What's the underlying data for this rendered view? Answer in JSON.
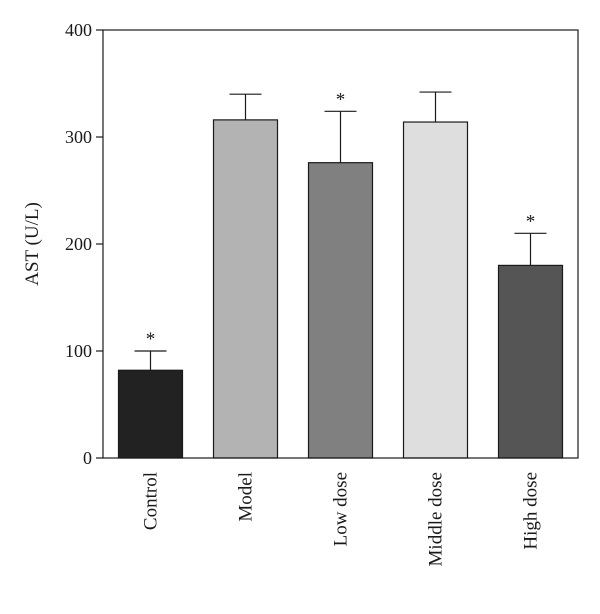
{
  "chart_data": {
    "type": "bar",
    "title": "",
    "xlabel": "",
    "ylabel": "AST (U/L)",
    "ylim": [
      0,
      400
    ],
    "yticks": [
      0,
      100,
      200,
      300,
      400
    ],
    "grid": false,
    "legend": "none",
    "categories": [
      "Control",
      "Model",
      "Low dose",
      "Middle dose",
      "High dose"
    ],
    "values": [
      82,
      316,
      276,
      314,
      180
    ],
    "errors": [
      18,
      24,
      48,
      28,
      30
    ],
    "significance": [
      "*",
      "",
      "*",
      "",
      "*"
    ],
    "colors": [
      "#222222",
      "#b3b3b3",
      "#808080",
      "#dedede",
      "#555555"
    ]
  }
}
